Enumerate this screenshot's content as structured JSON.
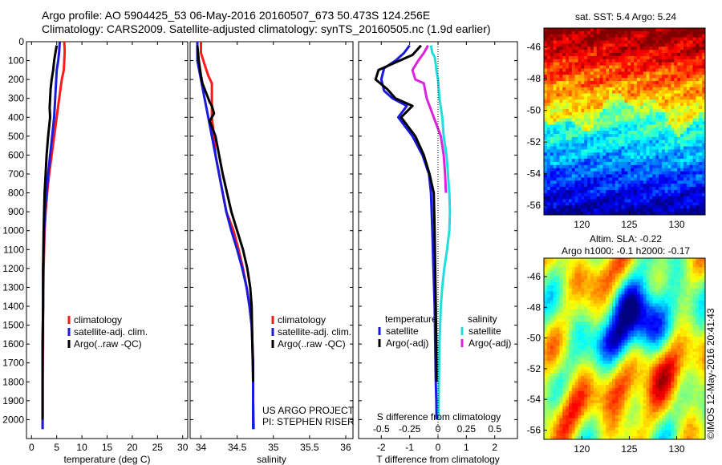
{
  "header": {
    "line1": "Argo profile: AO 5904425_53 06-May-2016 20160507_673 50.473S 124.256E",
    "line2": "Climatology: CARS2009. Satellite-adjusted climatology: synTS_20160505.nc (1.9d earlier)"
  },
  "colors": {
    "climatology": "#ff1a1a",
    "satellite": "#1a1adc",
    "argo": "#000000",
    "sat_salinity": "#22dddd",
    "argo_salinity": "#dd22dd"
  },
  "stamp": "©IMOS 12-May-2016 20:41:43",
  "chart_data": [
    {
      "type": "line",
      "name": "temperature",
      "xlabel": "temperature (deg C)",
      "ylabel": "",
      "xlim": [
        -1,
        31
      ],
      "ylim": [
        2100,
        0
      ],
      "xticks": [
        0,
        5,
        10,
        15,
        20,
        25,
        30
      ],
      "yticks": [
        0,
        100,
        200,
        300,
        400,
        500,
        600,
        700,
        800,
        900,
        1000,
        1100,
        1200,
        1300,
        1400,
        1500,
        1600,
        1700,
        1800,
        1900,
        2000
      ],
      "legend": [
        "climatology",
        "satellite-adj. clim.",
        "Argo(..raw -QC)"
      ],
      "legend_position": "lower-right",
      "series": [
        {
          "name": "climatology",
          "color_key": "climatology",
          "x": [
            6.5,
            6.6,
            6.5,
            6.4,
            6.0,
            5.5,
            5.0,
            4.5,
            4.0,
            3.5,
            3.1,
            2.8,
            2.6,
            2.5,
            2.4,
            2.3,
            2.3,
            2.2,
            2.2,
            2.2
          ],
          "y": [
            0,
            50,
            100,
            150,
            200,
            300,
            400,
            500,
            600,
            700,
            800,
            900,
            1000,
            1100,
            1200,
            1400,
            1600,
            1800,
            1900,
            2050
          ]
        },
        {
          "name": "satellite-adj. clim.",
          "color_key": "satellite",
          "x": [
            5.6,
            5.5,
            5.3,
            5.0,
            4.9,
            4.7,
            4.5,
            4.1,
            3.7,
            3.3,
            3.0,
            2.7,
            2.5,
            2.4,
            2.3,
            2.3,
            2.2,
            2.2,
            2.2,
            2.2
          ],
          "y": [
            0,
            50,
            100,
            150,
            200,
            300,
            400,
            500,
            600,
            700,
            800,
            900,
            1000,
            1100,
            1200,
            1400,
            1600,
            1800,
            1900,
            2050
          ]
        },
        {
          "name": "Argo(..raw -QC)",
          "color_key": "argo",
          "x": [
            5.0,
            4.8,
            4.5,
            4.3,
            4.0,
            3.8,
            3.7,
            3.6,
            3.7,
            3.3,
            3.0,
            2.8,
            2.6,
            2.5,
            2.4,
            2.3,
            2.3,
            2.2,
            2.2,
            2.2
          ],
          "y": [
            20,
            50,
            100,
            150,
            200,
            250,
            300,
            350,
            400,
            500,
            600,
            700,
            800,
            900,
            1000,
            1200,
            1400,
            1600,
            1800,
            2000
          ]
        }
      ]
    },
    {
      "type": "line",
      "name": "salinity",
      "xlabel": "salinity",
      "ylabel": "",
      "xlim": [
        33.85,
        36.1
      ],
      "ylim": [
        2100,
        0
      ],
      "xticks": [
        34,
        34.5,
        35,
        35.5,
        36
      ],
      "legend": [
        "climatology",
        "satellite-adj. clim.",
        "Argo(..raw -QC)"
      ],
      "legend_position": "lower-right",
      "annotation": [
        "US ARGO PROJECT",
        "PI: STEPHEN RISER"
      ],
      "series": [
        {
          "name": "climatology",
          "color_key": "climatology",
          "x": [
            34.0,
            34.0,
            34.05,
            34.1,
            34.15,
            34.15,
            34.15,
            34.18,
            34.2,
            34.25,
            34.3,
            34.35,
            34.45,
            34.52,
            34.58,
            34.63,
            34.67,
            34.7,
            34.71,
            34.72,
            34.72,
            34.73
          ],
          "y": [
            0,
            60,
            120,
            180,
            220,
            260,
            400,
            500,
            600,
            700,
            800,
            900,
            1000,
            1100,
            1200,
            1300,
            1400,
            1500,
            1600,
            1700,
            1900,
            2050
          ]
        },
        {
          "name": "satellite-adj. clim.",
          "color_key": "satellite",
          "x": [
            33.95,
            33.95,
            34.0,
            34.05,
            34.1,
            34.15,
            34.2,
            34.25,
            34.3,
            34.35,
            34.42,
            34.5,
            34.57,
            34.63,
            34.67,
            34.7,
            34.71,
            34.72,
            34.72,
            34.72
          ],
          "y": [
            0,
            100,
            200,
            300,
            400,
            500,
            600,
            700,
            800,
            900,
            1000,
            1100,
            1200,
            1300,
            1400,
            1500,
            1600,
            1700,
            1900,
            2050
          ]
        },
        {
          "name": "Argo(..raw -QC)",
          "color_key": "argo",
          "x": [
            33.95,
            33.97,
            34.0,
            34.02,
            34.08,
            34.12,
            34.15,
            34.18,
            34.12,
            34.2,
            34.25,
            34.3,
            34.36,
            34.42,
            34.5,
            34.58,
            34.64,
            34.68,
            34.7,
            34.71,
            34.72
          ],
          "y": [
            20,
            100,
            180,
            220,
            280,
            320,
            340,
            380,
            420,
            500,
            600,
            700,
            800,
            900,
            1000,
            1100,
            1200,
            1300,
            1400,
            1600,
            1800
          ]
        }
      ]
    },
    {
      "type": "line",
      "name": "difference",
      "xlabel": "T difference from climatology",
      "ylabel": "",
      "top_xlabel": "S difference from climatology",
      "xlim": [
        -2.8,
        2.8
      ],
      "ylim": [
        2100,
        0
      ],
      "xticks": [
        -2,
        -1,
        0,
        1,
        2
      ],
      "top_xtick_labels": [
        "-0.5",
        "-0.25",
        "0",
        "0.25",
        "0.5"
      ],
      "legend_titles": [
        "temperature",
        "salinity"
      ],
      "legend_position": "lower-center",
      "series": [
        {
          "name": "satellite",
          "group": "temperature",
          "color_key": "satellite",
          "x": [
            -1.0,
            -1.2,
            -1.5,
            -1.9,
            -2.0,
            -1.9,
            -1.6,
            -1.1,
            -1.4,
            -0.9,
            -0.55,
            -0.32,
            -0.25,
            -0.2,
            -0.16,
            -0.12,
            -0.1,
            -0.08,
            -0.06,
            -0.05
          ],
          "y": [
            20,
            60,
            100,
            140,
            200,
            260,
            300,
            340,
            400,
            500,
            600,
            700,
            800,
            1000,
            1200,
            1400,
            1600,
            1800,
            1900,
            2000
          ]
        },
        {
          "name": "Argo(-adj)",
          "group": "temperature",
          "color_key": "argo",
          "x": [
            -0.6,
            -0.9,
            -1.5,
            -2.1,
            -2.2,
            -1.8,
            -1.5,
            -0.9,
            -1.3,
            -0.8,
            -0.5,
            -0.3,
            -0.15,
            -0.12,
            -0.1,
            -0.08,
            -0.06,
            -0.05
          ],
          "y": [
            20,
            70,
            110,
            150,
            200,
            250,
            300,
            340,
            400,
            500,
            600,
            700,
            800,
            1000,
            1200,
            1400,
            1600,
            1800
          ]
        },
        {
          "name": "satellite",
          "group": "salinity",
          "color_key": "sat_salinity",
          "x": [
            -0.25,
            -0.2,
            -0.12,
            -0.08,
            -0.05,
            0.0,
            0.05,
            0.15,
            0.2,
            0.3,
            0.35,
            0.4,
            0.42,
            0.4,
            0.32,
            0.22,
            0.15,
            0.1,
            0.05,
            0.03,
            0.02
          ],
          "y": [
            20,
            60,
            80,
            120,
            160,
            200,
            300,
            400,
            500,
            600,
            700,
            800,
            900,
            1000,
            1100,
            1200,
            1300,
            1400,
            1600,
            1800,
            2000
          ]
        },
        {
          "name": "Argo(-adj)",
          "group": "salinity",
          "color_key": "argo_salinity",
          "x": [
            -0.35,
            -0.5,
            -0.7,
            -0.9,
            -0.8,
            -0.5,
            -0.4,
            -0.25,
            -0.15,
            0.1,
            0.2,
            0.25,
            0.28
          ],
          "y": [
            20,
            60,
            100,
            150,
            200,
            220,
            300,
            360,
            400,
            500,
            600,
            700,
            800
          ]
        }
      ]
    },
    {
      "type": "heatmap",
      "name": "sea surface temperature map",
      "title": "sat. SST: 5.4  Argo: 5.24",
      "xticks": [
        120,
        125,
        130
      ],
      "yticks": [
        -46,
        -48,
        -50,
        -52,
        -54,
        -56
      ],
      "xlim": [
        116,
        133
      ],
      "ylim": [
        -56.6,
        -44.8
      ],
      "marker": {
        "lon": 124.256,
        "lat": -50.473
      }
    },
    {
      "type": "heatmap",
      "name": "sea level anomaly map",
      "title": "Altim. SLA: -0.22",
      "subtitle": "Argo h1000: -0.1  h2000: -0.17",
      "xticks": [
        120,
        125,
        130
      ],
      "yticks": [
        -46,
        -48,
        -50,
        -52,
        -54,
        -56
      ],
      "xlim": [
        116,
        133
      ],
      "ylim": [
        -56.6,
        -44.8
      ]
    }
  ]
}
